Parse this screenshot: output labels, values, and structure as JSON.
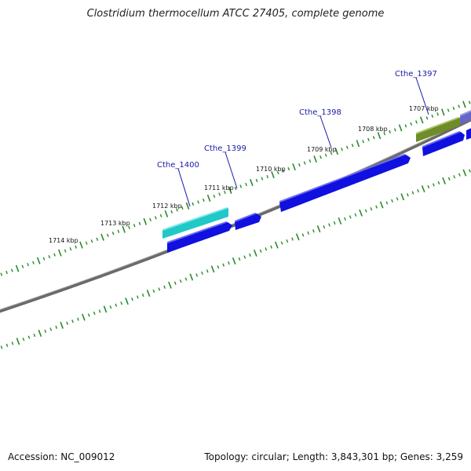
{
  "title": "Clostridium thermocellum ATCC 27405, complete genome",
  "footer": {
    "accession": "Accession: NC_009012",
    "summary": "Topology: circular; Length: 3,843,301 bp; Genes: 3,259"
  },
  "kbp_labels": [
    "1707 kbp",
    "1708 kbp",
    "1709 kbp",
    "1710 kbp",
    "1711 kbp",
    "1712 kbp",
    "1713 kbp",
    "1714 kbp"
  ],
  "gene_labels": [
    "Cthe_1397",
    "Cthe_1398",
    "Cthe_1399",
    "Cthe_1400"
  ],
  "colors": {
    "backbone": "#808080",
    "ticks": "#2a8a2a",
    "gene_blue": "#1010e0",
    "gene_cyan": "#20c8c8",
    "gene_olive": "#6e8c28",
    "gene_purple": "#6666c8",
    "label": "#1a1aa6"
  }
}
